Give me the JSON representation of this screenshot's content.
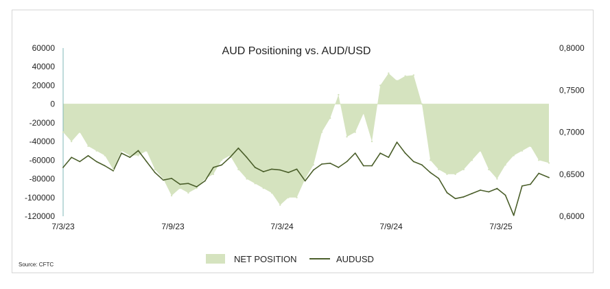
{
  "chart_data": {
    "type": "area",
    "title": "AUD Positioning vs. AUD/USD",
    "source": "Source: CFTC",
    "x_ticks": [
      "7/3/23",
      "7/9/23",
      "7/3/24",
      "7/9/24",
      "7/3/25"
    ],
    "x_range": [
      "2023-03-07",
      "2025-05-30"
    ],
    "y_left": {
      "range": [
        -120000,
        60000
      ],
      "ticks": [
        "60000",
        "40000",
        "20000",
        "0",
        "-20000",
        "-40000",
        "-60000",
        "-80000",
        "-100000",
        "-120000"
      ]
    },
    "y_right": {
      "range": [
        0.6,
        0.8
      ],
      "ticks": [
        "0,8000",
        "0,7500",
        "0,7000",
        "0,6500",
        "0,6000"
      ]
    },
    "legend": [
      "NET POSITION",
      "AUDUSD"
    ],
    "legend_position": "bottom",
    "grid": false,
    "colors": {
      "net_position": "#d5e3bf",
      "audusd": "#4a5e2a",
      "y_axis_line": "#7fb7b7"
    },
    "series": [
      {
        "name": "NET POSITION",
        "axis": "left",
        "x": [
          "2023-03-07",
          "2023-03-21",
          "2023-04-04",
          "2023-04-18",
          "2023-05-02",
          "2023-05-16",
          "2023-05-30",
          "2023-06-13",
          "2023-06-27",
          "2023-07-11",
          "2023-07-25",
          "2023-08-08",
          "2023-08-22",
          "2023-09-05",
          "2023-09-19",
          "2023-10-03",
          "2023-10-17",
          "2023-10-31",
          "2023-11-14",
          "2023-11-28",
          "2023-12-12",
          "2023-12-26",
          "2024-01-09",
          "2024-01-23",
          "2024-02-06",
          "2024-02-20",
          "2024-03-05",
          "2024-03-19",
          "2024-04-02",
          "2024-04-16",
          "2024-04-30",
          "2024-05-14",
          "2024-05-28",
          "2024-06-11",
          "2024-06-25",
          "2024-07-09",
          "2024-07-23",
          "2024-08-06",
          "2024-08-20",
          "2024-09-03",
          "2024-09-17",
          "2024-10-01",
          "2024-10-15",
          "2024-10-29",
          "2024-11-12",
          "2024-11-26",
          "2024-12-10",
          "2024-12-24",
          "2025-01-07",
          "2025-01-21",
          "2025-02-04",
          "2025-02-18",
          "2025-03-04",
          "2025-03-18",
          "2025-04-01",
          "2025-04-15",
          "2025-04-29",
          "2025-05-13",
          "2025-05-30"
        ],
        "values": [
          -30000,
          -40000,
          -30000,
          -45000,
          -50000,
          -55000,
          -70000,
          -50000,
          -55000,
          -55000,
          -50000,
          -70000,
          -80000,
          -98000,
          -90000,
          -95000,
          -90000,
          -80000,
          -75000,
          -60000,
          -55000,
          -70000,
          -80000,
          -85000,
          -90000,
          -95000,
          -108000,
          -100000,
          -100000,
          -80000,
          -65000,
          -30000,
          -15000,
          10000,
          -35000,
          -30000,
          -10000,
          -40000,
          20000,
          33000,
          25000,
          30000,
          31000,
          0,
          -60000,
          -70000,
          -75000,
          -75000,
          -70000,
          -60000,
          -50000,
          -70000,
          -80000,
          -65000,
          -55000,
          -50000,
          -45000,
          -60000,
          -63000
        ]
      },
      {
        "name": "AUDUSD",
        "axis": "right",
        "x": [
          "2023-03-07",
          "2023-03-21",
          "2023-04-04",
          "2023-04-18",
          "2023-05-02",
          "2023-05-16",
          "2023-05-30",
          "2023-06-13",
          "2023-06-27",
          "2023-07-11",
          "2023-07-25",
          "2023-08-08",
          "2023-08-22",
          "2023-09-05",
          "2023-09-19",
          "2023-10-03",
          "2023-10-17",
          "2023-10-31",
          "2023-11-14",
          "2023-11-28",
          "2023-12-12",
          "2023-12-26",
          "2024-01-09",
          "2024-01-23",
          "2024-02-06",
          "2024-02-20",
          "2024-03-05",
          "2024-03-19",
          "2024-04-02",
          "2024-04-16",
          "2024-04-30",
          "2024-05-14",
          "2024-05-28",
          "2024-06-11",
          "2024-06-25",
          "2024-07-09",
          "2024-07-23",
          "2024-08-06",
          "2024-08-20",
          "2024-09-03",
          "2024-09-17",
          "2024-10-01",
          "2024-10-15",
          "2024-10-29",
          "2024-11-12",
          "2024-11-26",
          "2024-12-10",
          "2024-12-24",
          "2025-01-07",
          "2025-01-21",
          "2025-02-04",
          "2025-02-18",
          "2025-03-04",
          "2025-03-18",
          "2025-04-01",
          "2025-04-15",
          "2025-04-29",
          "2025-05-13",
          "2025-05-30"
        ],
        "values": [
          0.658,
          0.67,
          0.665,
          0.672,
          0.665,
          0.66,
          0.654,
          0.675,
          0.67,
          0.678,
          0.665,
          0.652,
          0.643,
          0.645,
          0.638,
          0.639,
          0.635,
          0.642,
          0.658,
          0.661,
          0.67,
          0.681,
          0.67,
          0.658,
          0.653,
          0.656,
          0.655,
          0.652,
          0.656,
          0.642,
          0.655,
          0.662,
          0.663,
          0.658,
          0.665,
          0.675,
          0.66,
          0.66,
          0.675,
          0.67,
          0.688,
          0.675,
          0.665,
          0.661,
          0.652,
          0.645,
          0.628,
          0.621,
          0.623,
          0.627,
          0.631,
          0.629,
          0.633,
          0.625,
          0.601,
          0.636,
          0.638,
          0.651,
          0.646
        ]
      }
    ]
  }
}
